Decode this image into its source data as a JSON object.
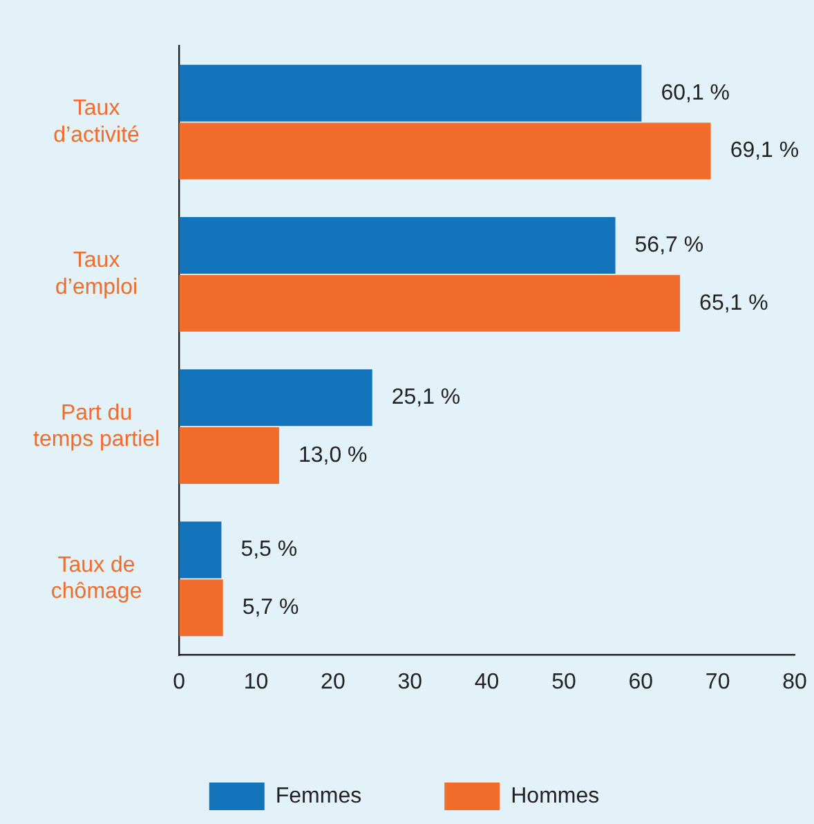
{
  "chart_data": {
    "type": "bar",
    "orientation": "horizontal",
    "categories": [
      "Taux\nd’activité",
      "Taux\nd’emploi",
      "Part du\ntemps partiel",
      "Taux de\nchômage"
    ],
    "series": [
      {
        "name": "Femmes",
        "color": "#1474bb",
        "values": [
          60.1,
          56.7,
          25.1,
          5.5
        ],
        "value_labels": [
          "60,1 %",
          "56,7 %",
          "25,1 %",
          "5,5 %"
        ]
      },
      {
        "name": "Hommes",
        "color": "#f26c2c",
        "values": [
          69.1,
          65.1,
          13.0,
          5.7
        ],
        "value_labels": [
          "69,1 %",
          "65,1 %",
          "13,0 %",
          "5,7 %"
        ]
      }
    ],
    "xlim": [
      0,
      80
    ],
    "xticks": [
      0,
      10,
      20,
      30,
      40,
      50,
      60,
      70,
      80
    ],
    "grid": false,
    "legend": "bottom"
  }
}
